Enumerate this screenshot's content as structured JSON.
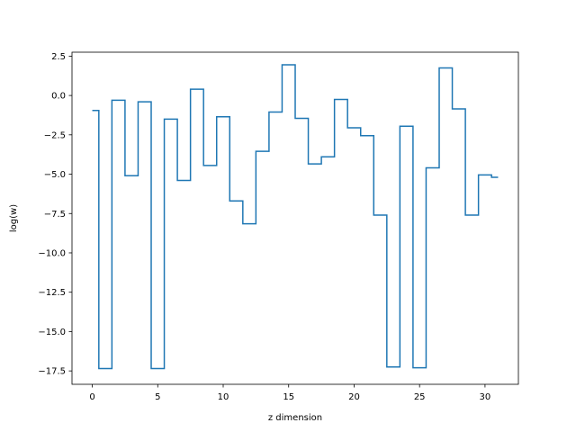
{
  "chart_data": {
    "type": "line",
    "drawstyle": "steps-mid",
    "title": "",
    "xlabel": "z dimension",
    "ylabel": "log(w)",
    "xlim": [
      -1.55,
      32.55
    ],
    "ylim": [
      -18.35,
      2.75
    ],
    "xticks": [
      0,
      5,
      10,
      15,
      20,
      25,
      30
    ],
    "yticks": [
      2.5,
      0.0,
      -2.5,
      -5.0,
      -7.5,
      -10.0,
      -12.5,
      -15.0,
      -17.5
    ],
    "ytick_labels": [
      "2.5",
      "0.0",
      "−2.5",
      "−5.0",
      "−7.5",
      "−10.0",
      "−12.5",
      "−15.0",
      "−17.5"
    ],
    "grid": false,
    "line_color": "#1f77b4",
    "series": [
      {
        "x": [
          0,
          1,
          2,
          3,
          4,
          5,
          6,
          7,
          8,
          9,
          10,
          11,
          12,
          13,
          14,
          15,
          16,
          17,
          18,
          19,
          20,
          21,
          22,
          23,
          24,
          25,
          26,
          27,
          28,
          29,
          30,
          31
        ],
        "values": [
          -0.95,
          -17.35,
          -0.3,
          -5.1,
          -0.4,
          -17.35,
          -1.5,
          -5.4,
          0.4,
          -4.45,
          -1.35,
          -6.7,
          -8.15,
          -3.55,
          -1.05,
          1.95,
          -1.45,
          -4.35,
          -3.9,
          -0.25,
          -2.05,
          -2.55,
          -7.6,
          -17.25,
          -1.95,
          -17.3,
          -4.6,
          1.75,
          -0.85,
          -7.6,
          -5.05,
          -5.2
        ]
      }
    ]
  }
}
